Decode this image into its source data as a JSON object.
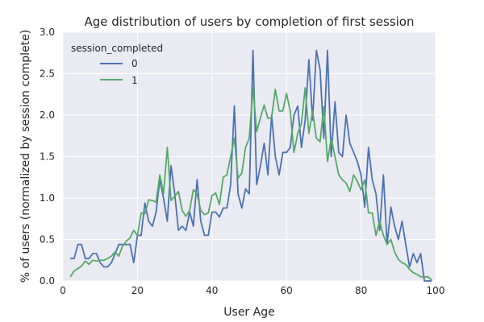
{
  "chart_data": {
    "type": "line",
    "title": "Age distribution of users by completion of first session",
    "xlabel": "User Age",
    "ylabel": "% of users (normalized by session complete)",
    "xlim": [
      0,
      100
    ],
    "ylim": [
      0,
      3.0
    ],
    "x_ticks": [
      "0",
      "20",
      "40",
      "60",
      "80",
      "100"
    ],
    "y_ticks": [
      "0.0",
      "0.5",
      "1.0",
      "1.5",
      "2.0",
      "2.5",
      "3.0"
    ],
    "grid": true,
    "background": "#eaeaf2",
    "legend": {
      "title": "session_completed",
      "position": "top-left"
    },
    "series": [
      {
        "name": "0",
        "color": "#4c72b0",
        "x": [
          2,
          3,
          4,
          5,
          6,
          7,
          8,
          9,
          10,
          11,
          12,
          13,
          14,
          15,
          16,
          17,
          18,
          19,
          20,
          21,
          22,
          23,
          24,
          25,
          26,
          27,
          28,
          29,
          30,
          31,
          32,
          33,
          34,
          35,
          36,
          37,
          38,
          39,
          40,
          41,
          42,
          43,
          44,
          45,
          46,
          47,
          48,
          49,
          50,
          51,
          52,
          53,
          54,
          55,
          56,
          57,
          58,
          59,
          60,
          61,
          62,
          63,
          64,
          65,
          66,
          67,
          68,
          69,
          70,
          71,
          72,
          73,
          74,
          75,
          76,
          77,
          78,
          79,
          80,
          81,
          82,
          83,
          84,
          85,
          86,
          87,
          88,
          89,
          90,
          91,
          92,
          93,
          94,
          95,
          96,
          97,
          98,
          99
        ],
        "values": [
          0.27,
          0.27,
          0.44,
          0.44,
          0.27,
          0.27,
          0.33,
          0.33,
          0.22,
          0.17,
          0.17,
          0.22,
          0.33,
          0.44,
          0.44,
          0.44,
          0.44,
          0.22,
          0.55,
          0.55,
          0.94,
          0.72,
          0.66,
          0.83,
          1.22,
          1.0,
          0.72,
          1.39,
          1.05,
          0.61,
          0.66,
          0.61,
          0.83,
          0.66,
          1.22,
          0.72,
          0.55,
          0.55,
          0.83,
          0.83,
          0.77,
          0.88,
          0.88,
          1.16,
          2.11,
          1.05,
          0.88,
          1.11,
          1.05,
          2.78,
          1.16,
          1.39,
          1.66,
          1.28,
          2.0,
          1.5,
          1.28,
          1.55,
          1.55,
          1.61,
          2.0,
          2.11,
          1.61,
          1.94,
          2.67,
          1.94,
          2.78,
          2.55,
          1.72,
          2.78,
          1.5,
          2.16,
          1.55,
          1.5,
          2.0,
          1.66,
          1.55,
          1.44,
          1.28,
          0.89,
          1.61,
          1.22,
          1.05,
          0.61,
          1.28,
          0.44,
          0.89,
          0.66,
          0.5,
          0.72,
          0.44,
          0.17,
          0.33,
          0.22,
          0.33,
          0.0,
          0.0,
          0.0
        ]
      },
      {
        "name": "1",
        "color": "#55a868",
        "x": [
          2,
          3,
          4,
          5,
          6,
          7,
          8,
          9,
          10,
          11,
          12,
          13,
          14,
          15,
          16,
          17,
          18,
          19,
          20,
          21,
          22,
          23,
          24,
          25,
          26,
          27,
          28,
          29,
          30,
          31,
          32,
          33,
          34,
          35,
          36,
          37,
          38,
          39,
          40,
          41,
          42,
          43,
          44,
          45,
          46,
          47,
          48,
          49,
          50,
          51,
          52,
          53,
          54,
          55,
          56,
          57,
          58,
          59,
          60,
          61,
          62,
          63,
          64,
          65,
          66,
          67,
          68,
          69,
          70,
          71,
          72,
          73,
          74,
          75,
          76,
          77,
          78,
          79,
          80,
          81,
          82,
          83,
          84,
          85,
          86,
          87,
          88,
          89,
          90,
          91,
          92,
          93,
          94,
          95,
          96,
          97,
          98,
          99
        ],
        "values": [
          0.05,
          0.12,
          0.15,
          0.18,
          0.24,
          0.2,
          0.25,
          0.24,
          0.25,
          0.25,
          0.27,
          0.3,
          0.35,
          0.3,
          0.42,
          0.48,
          0.52,
          0.61,
          0.55,
          0.82,
          0.81,
          0.98,
          0.97,
          0.95,
          1.28,
          1.05,
          1.61,
          0.97,
          1.02,
          1.08,
          0.85,
          0.78,
          0.85,
          1.1,
          1.05,
          0.85,
          0.8,
          0.82,
          1.03,
          1.06,
          0.92,
          1.25,
          1.28,
          1.5,
          1.72,
          1.24,
          1.3,
          1.61,
          1.72,
          2.33,
          1.8,
          1.97,
          2.12,
          1.96,
          1.97,
          2.31,
          2.05,
          2.05,
          2.26,
          2.05,
          1.55,
          1.78,
          1.9,
          2.33,
          1.78,
          2.05,
          1.72,
          1.68,
          2.1,
          1.44,
          1.72,
          1.5,
          1.28,
          1.22,
          1.18,
          1.08,
          1.28,
          1.2,
          1.1,
          1.22,
          0.82,
          0.82,
          0.55,
          0.72,
          0.55,
          0.44,
          0.5,
          0.35,
          0.26,
          0.22,
          0.2,
          0.14,
          0.1,
          0.08,
          0.05,
          0.05,
          0.05,
          0.01
        ]
      }
    ]
  }
}
